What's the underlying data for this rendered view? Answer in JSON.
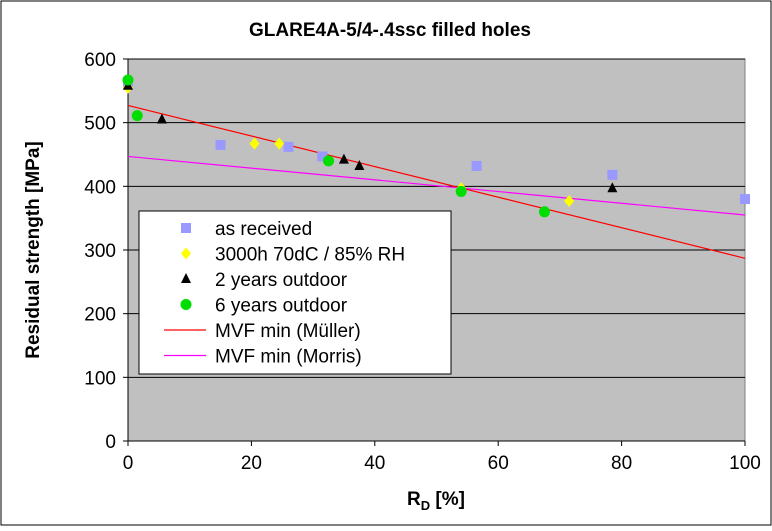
{
  "chart_data": {
    "type": "scatter",
    "title": "GLARE4A-5/4-.4ssc filled holes",
    "xlabel_main": "R",
    "xlabel_sub": "D",
    "xlabel_unit": " [%]",
    "ylabel": "Residual strength [MPa]",
    "xlim": [
      0,
      100
    ],
    "ylim": [
      0,
      600
    ],
    "x_ticks": [
      0,
      20,
      40,
      60,
      80,
      100
    ],
    "y_ticks": [
      0,
      100,
      200,
      300,
      400,
      500,
      600
    ],
    "grid": "horizontal",
    "plot_background": "#c0c0c0",
    "legend_position": "left",
    "series": [
      {
        "name": "as received",
        "marker": "square",
        "color": "#9999ff",
        "points": [
          [
            0,
            560
          ],
          [
            15,
            465
          ],
          [
            26,
            462
          ],
          [
            31.5,
            447
          ],
          [
            56.5,
            432
          ],
          [
            78.5,
            418
          ],
          [
            100,
            380
          ]
        ]
      },
      {
        "name": "3000h 70dC / 85% RH",
        "marker": "diamond",
        "color": "#ffff00",
        "points": [
          [
            0,
            555
          ],
          [
            20.5,
            467
          ],
          [
            24.5,
            467
          ],
          [
            54,
            397
          ],
          [
            71.5,
            377
          ]
        ]
      },
      {
        "name": "2 years outdoor",
        "marker": "triangle",
        "color": "#000000",
        "points": [
          [
            0,
            558
          ],
          [
            5.5,
            505
          ],
          [
            35,
            442
          ],
          [
            37.5,
            432
          ],
          [
            78.5,
            397
          ]
        ]
      },
      {
        "name": "6 years outdoor",
        "marker": "circle",
        "color": "#00dd00",
        "points": [
          [
            0,
            567
          ],
          [
            1.5,
            511
          ],
          [
            32.5,
            440
          ],
          [
            54,
            392
          ],
          [
            67.5,
            360
          ]
        ]
      },
      {
        "name": "MVF min (Müller)",
        "marker": "line",
        "color": "#ff0000",
        "points": [
          [
            0,
            527
          ],
          [
            100,
            287
          ]
        ]
      },
      {
        "name": "MVF min (Morris)",
        "marker": "line",
        "color": "#ff00ff",
        "points": [
          [
            0,
            447
          ],
          [
            100,
            355
          ]
        ]
      }
    ]
  }
}
